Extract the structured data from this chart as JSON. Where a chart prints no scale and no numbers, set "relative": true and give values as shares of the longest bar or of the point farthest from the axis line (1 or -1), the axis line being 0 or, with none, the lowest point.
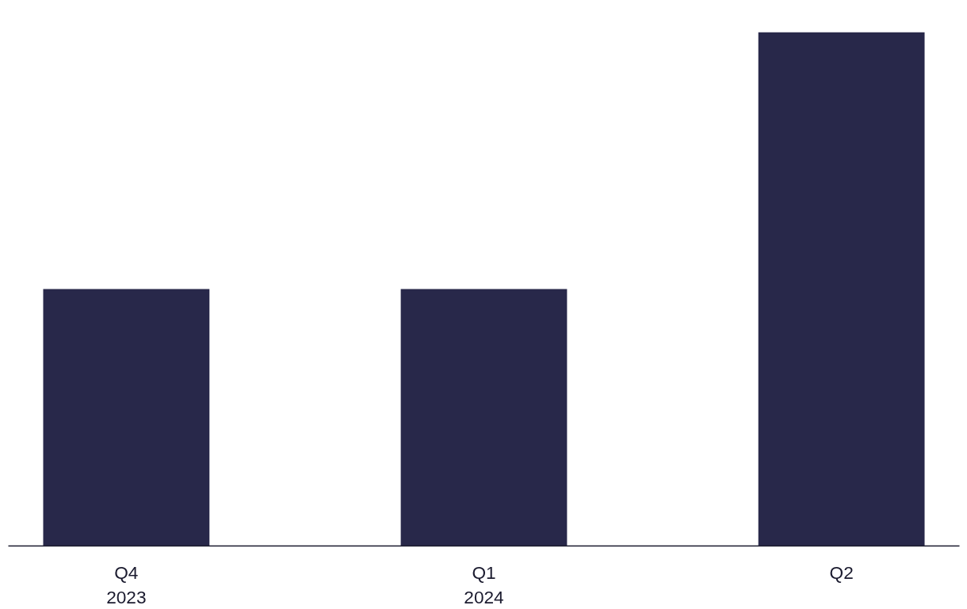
{
  "chart_data": {
    "type": "bar",
    "relative": true,
    "categories": [
      "Q4\n2023",
      "Q1\n2024",
      "Q2"
    ],
    "values": [
      0.5,
      0.5,
      1
    ],
    "color": "#28284a",
    "grid": false
  }
}
